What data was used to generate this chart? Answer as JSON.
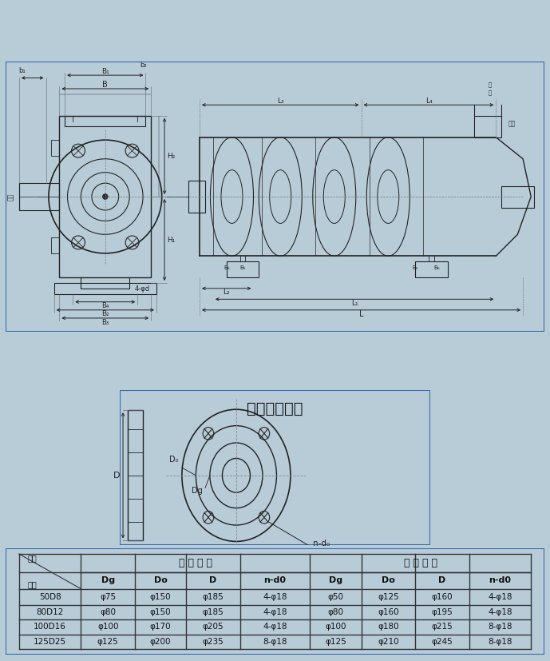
{
  "outer_bg": "#b8ccd8",
  "sec1_bg": "#ccdce8",
  "sec2_bg": "#e8e8e8",
  "sec3_bg": "#d8d0c0",
  "border_color": "#3366aa",
  "lc": "#222222",
  "dlc": "#666666",
  "table_bg": "#d8d0c0",
  "table_border": "#333333",
  "title2": "吸入吐出法兰",
  "header1_left": "吸 入 法 兰",
  "header1_right": "吐 出 法 兰",
  "row0": [
    "型号",
    "吸入法兰",
    "",
    "",
    "",
    "吐出法兰",
    "",
    "",
    ""
  ],
  "sub_row": [
    "尺寸",
    "Dg",
    "Do",
    "D",
    "n-d0",
    "Dg",
    "Do",
    "D",
    "n-d0"
  ],
  "table_data": [
    [
      "50D8",
      "φ75",
      "φ150",
      "φ185",
      "4-φ18",
      "φ50",
      "φ125",
      "φ160",
      "4-φ18"
    ],
    [
      "80D12",
      "φ80",
      "φ150",
      "φ185",
      "4-φ18",
      "φ80",
      "φ160",
      "φ195",
      "4-φ18"
    ],
    [
      "100D16",
      "φ100",
      "φ170",
      "φ205",
      "4-φ18",
      "φ100",
      "φ180",
      "φ215",
      "8-φ18"
    ],
    [
      "125D25",
      "φ125",
      "φ200",
      "φ235",
      "8-φ18",
      "φ125",
      "φ210",
      "φ245",
      "8-φ18"
    ]
  ],
  "jinshu": "进水",
  "chushu": "出水",
  "dim_labels_front": {
    "B": "B",
    "B1": "B₁",
    "b1": "b₁",
    "b2": "b₂",
    "H1": "H₁",
    "H2": "H₂",
    "B2": "B₂",
    "B3": "B₃",
    "B4": "B₄",
    "label4phi": "4-φd"
  },
  "dim_labels_side": {
    "L": "L",
    "L1": "L₁",
    "L2": "L₂",
    "L3": "L₃",
    "L4": "L₄",
    "B5": "B₅",
    "B6": "B₆"
  }
}
